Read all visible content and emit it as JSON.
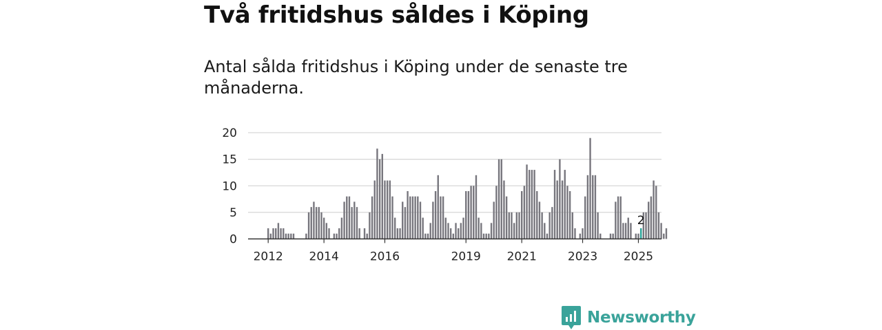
{
  "header": {
    "title": "Två fritidshus såldes i Köping",
    "subtitle": "Antal sålda fritidshus i Köping under de senaste tre månaderna."
  },
  "brand": {
    "name": "Newsworthy",
    "icon": "newsworthy-logo-icon",
    "color": "#3aa39a"
  },
  "chart_data": {
    "type": "bar",
    "ylim": [
      0,
      20
    ],
    "yticks": [
      0,
      5,
      10,
      15,
      20
    ],
    "xticks": [
      {
        "index": 0,
        "label": "2012"
      },
      {
        "index": 22,
        "label": "2014"
      },
      {
        "index": 46,
        "label": "2016"
      },
      {
        "index": 78,
        "label": "2019"
      },
      {
        "index": 100,
        "label": "2021"
      },
      {
        "index": 124,
        "label": "2023"
      },
      {
        "index": 146,
        "label": "2025"
      }
    ],
    "values": [
      2,
      1,
      2,
      2,
      3,
      2,
      2,
      1,
      1,
      1,
      1,
      0,
      0,
      0,
      0,
      1,
      5,
      6,
      7,
      6,
      6,
      5,
      4,
      3,
      2,
      0,
      1,
      1,
      2,
      4,
      7,
      8,
      8,
      6,
      7,
      6,
      2,
      0,
      2,
      1,
      5,
      8,
      11,
      17,
      15,
      16,
      11,
      11,
      11,
      8,
      4,
      2,
      2,
      7,
      6,
      9,
      8,
      8,
      8,
      8,
      7,
      4,
      1,
      1,
      3,
      7,
      9,
      12,
      8,
      8,
      4,
      3,
      2,
      1,
      3,
      2,
      3,
      4,
      9,
      9,
      10,
      10,
      12,
      4,
      3,
      1,
      1,
      1,
      3,
      7,
      10,
      15,
      15,
      11,
      8,
      5,
      5,
      3,
      5,
      5,
      9,
      10,
      14,
      13,
      13,
      13,
      9,
      7,
      5,
      3,
      1,
      5,
      6,
      13,
      11,
      15,
      11,
      13,
      10,
      9,
      5,
      2,
      0,
      1,
      2,
      8,
      12,
      19,
      12,
      12,
      5,
      1,
      0,
      0,
      0,
      1,
      1,
      7,
      8,
      8,
      3,
      3,
      4,
      3,
      0,
      1,
      1,
      2,
      5,
      5,
      7,
      8,
      11,
      10,
      5,
      3,
      1,
      2
    ],
    "highlight": {
      "index": 147,
      "value": 2,
      "label": "2",
      "color": "#2aa79b"
    },
    "bar_color": "#77767d",
    "grid": true
  }
}
